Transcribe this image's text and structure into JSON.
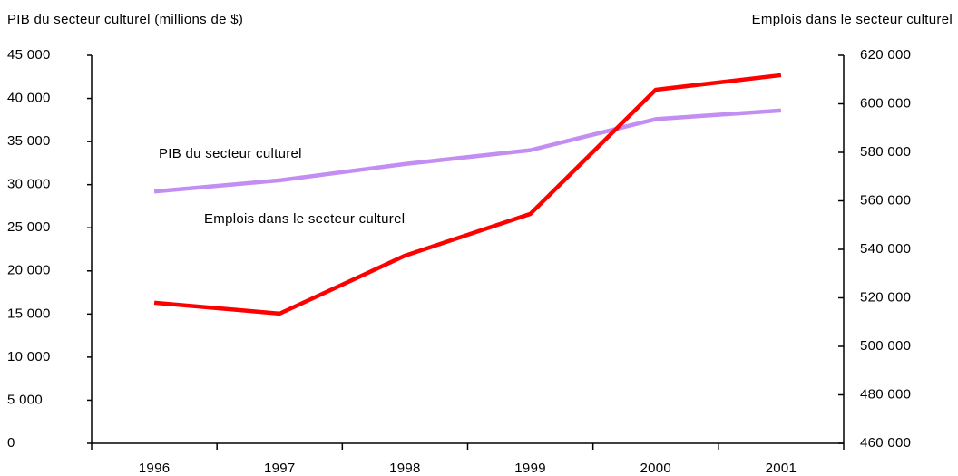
{
  "chart_data": {
    "type": "line",
    "y_label": "PIB du secteur culturel (millions de $)",
    "y2_label": "Emplois dans le secteur culturel",
    "annotations": [
      "PIB du secteur culturel",
      "Emplois dans le secteur culturel"
    ],
    "categories": [
      "1996",
      "1997",
      "1998",
      "1999",
      "2000",
      "2001"
    ],
    "series": [
      {
        "name": "PIB du secteur culturel",
        "color": "#c28ef2",
        "values": [
          29200,
          30500,
          32400,
          34000,
          37600,
          38600
        ]
      },
      {
        "name": "Emplois dans le secteur culturel",
        "color": "#ff0000",
        "axis": "y2",
        "values": [
          518000,
          513500,
          537400,
          554600,
          605800,
          611800
        ]
      }
    ],
    "ylim": [
      0,
      45000
    ],
    "yticks": [
      0,
      {
        "value": 5000,
        "label": "5 000"
      },
      {
        "value": 10000,
        "label": "10 000"
      },
      {
        "value": 15000,
        "label": "15 000"
      },
      {
        "value": 20000,
        "label": "20 000"
      },
      {
        "value": 25000,
        "label": "25 000"
      },
      {
        "value": 30000,
        "label": "30 000"
      },
      {
        "value": 35000,
        "label": "35 000"
      },
      {
        "value": 40000,
        "label": "40 000"
      },
      {
        "value": 45000,
        "label": "45 000"
      }
    ],
    "y2lim": [
      460000,
      620000
    ],
    "y2ticks": [
      {
        "value": 460000,
        "label": "460 000"
      },
      {
        "value": 480000,
        "label": "480 000"
      },
      {
        "value": 500000,
        "label": "500 000"
      },
      {
        "value": 520000,
        "label": "520 000"
      },
      {
        "value": 540000,
        "label": "540 000"
      },
      {
        "value": 560000,
        "label": "560 000"
      },
      {
        "value": 580000,
        "label": "580 000"
      },
      {
        "value": 600000,
        "label": "600 000"
      },
      {
        "value": 620000,
        "label": "620 000"
      }
    ]
  }
}
